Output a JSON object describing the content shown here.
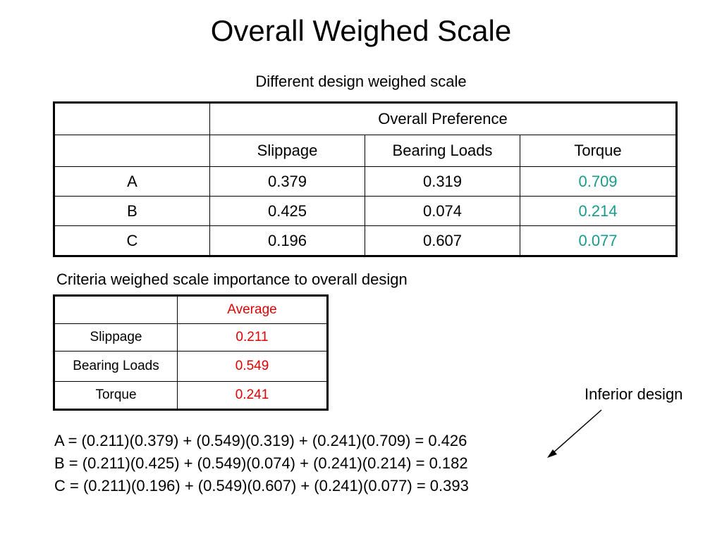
{
  "title": "Overall Weighed Scale",
  "subtitle": "Different design weighed scale",
  "colors": {
    "teal": "#1a9a8a",
    "red": "#e00000"
  },
  "table1": {
    "header": "Overall Preference",
    "columns": [
      "Slippage",
      "Bearing Loads",
      "Torque"
    ],
    "rows": [
      {
        "label": "A",
        "values": [
          "0.379",
          "0.319",
          "0.709"
        ]
      },
      {
        "label": "B",
        "values": [
          "0.425",
          "0.074",
          "0.214"
        ]
      },
      {
        "label": "C",
        "values": [
          "0.196",
          "0.607",
          "0.077"
        ]
      }
    ]
  },
  "criteria_title": "Criteria weighed scale importance to overall design",
  "table2": {
    "header": "Average",
    "rows": [
      {
        "label": "Slippage",
        "value": "0.211"
      },
      {
        "label": "Bearing Loads",
        "value": "0.549"
      },
      {
        "label": "Torque",
        "value": "0.241"
      }
    ]
  },
  "annotation": "Inferior design",
  "equations": [
    "A = (0.211)(0.379) + (0.549)(0.319) + (0.241)(0.709) = 0.426",
    "B = (0.211)(0.425) + (0.549)(0.074) + (0.241)(0.214) = 0.182",
    "C = (0.211)(0.196) + (0.549)(0.607) + (0.241)(0.077) = 0.393"
  ]
}
